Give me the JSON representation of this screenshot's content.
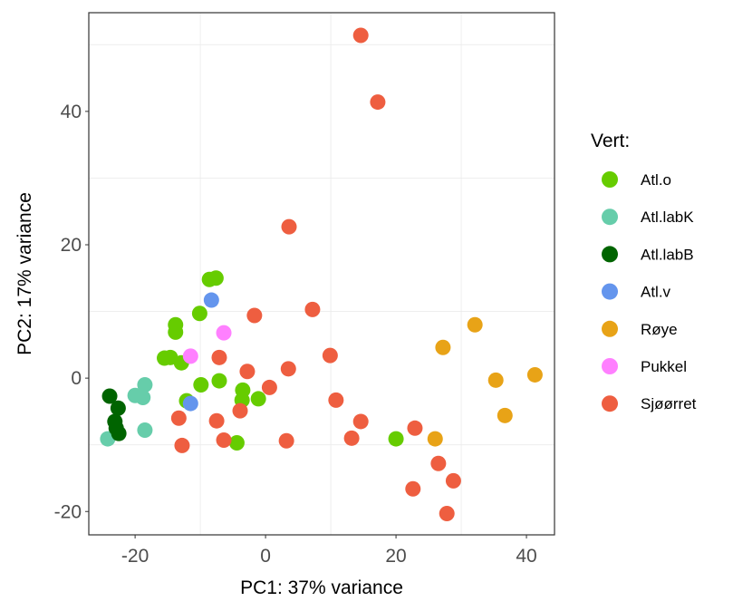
{
  "chart_data": {
    "type": "scatter",
    "title": "",
    "xlabel": "PC1: 37% variance",
    "ylabel": "PC2: 17% variance",
    "xlim": [
      -27.1,
      44.3
    ],
    "ylim": [
      -23.5,
      54.8
    ],
    "xticks": [
      -20,
      0,
      20,
      40
    ],
    "yticks": [
      -20,
      0,
      20,
      40
    ],
    "grid": true,
    "legend": {
      "title": "Vert:",
      "placement": "right"
    },
    "series": [
      {
        "name": "Atl.o",
        "color": "#66cc00",
        "points": [
          [
            -8.6,
            14.8
          ],
          [
            -7.6,
            15.0
          ],
          [
            -10.1,
            9.7
          ],
          [
            -13.8,
            8.0
          ],
          [
            -13.8,
            6.9
          ],
          [
            -15.5,
            3.0
          ],
          [
            -14.6,
            3.1
          ],
          [
            -12.9,
            2.3
          ],
          [
            -9.9,
            -1.0
          ],
          [
            -7.1,
            -0.4
          ],
          [
            -3.5,
            -1.8
          ],
          [
            -3.6,
            -3.3
          ],
          [
            -1.1,
            -3.1
          ],
          [
            -12.1,
            -3.4
          ],
          [
            -4.4,
            -9.7
          ],
          [
            20.0,
            -9.1
          ]
        ]
      },
      {
        "name": "Atl.labK",
        "color": "#66cdaa",
        "points": [
          [
            -18.5,
            -1.0
          ],
          [
            -20.0,
            -2.6
          ],
          [
            -18.8,
            -2.9
          ],
          [
            -18.5,
            -7.8
          ],
          [
            -24.2,
            -9.1
          ]
        ]
      },
      {
        "name": "Atl.labB",
        "color": "#006400",
        "points": [
          [
            -23.9,
            -2.7
          ],
          [
            -22.6,
            -4.5
          ],
          [
            -23.1,
            -6.5
          ],
          [
            -22.9,
            -7.5
          ],
          [
            -22.5,
            -8.3
          ]
        ]
      },
      {
        "name": "Atl.v",
        "color": "#6495ed",
        "points": [
          [
            -8.3,
            11.7
          ],
          [
            -11.5,
            -3.8
          ]
        ]
      },
      {
        "name": "Røye",
        "color": "#e8a317",
        "points": [
          [
            32.1,
            8.0
          ],
          [
            27.2,
            4.6
          ],
          [
            35.3,
            -0.3
          ],
          [
            41.3,
            0.5
          ],
          [
            36.7,
            -5.6
          ],
          [
            26.0,
            -9.1
          ]
        ]
      },
      {
        "name": "Pukkel",
        "color": "#ff80ff",
        "points": [
          [
            -6.4,
            6.8
          ],
          [
            -11.5,
            3.3
          ]
        ]
      },
      {
        "name": "Sjøørret",
        "color": "#ee5e40",
        "points": [
          [
            14.6,
            51.4
          ],
          [
            17.2,
            41.4
          ],
          [
            3.6,
            22.7
          ],
          [
            -1.7,
            9.4
          ],
          [
            7.2,
            10.3
          ],
          [
            9.9,
            3.4
          ],
          [
            3.5,
            1.4
          ],
          [
            -7.1,
            3.1
          ],
          [
            -2.8,
            1.0
          ],
          [
            0.6,
            -1.4
          ],
          [
            -13.3,
            -6.0
          ],
          [
            -7.5,
            -6.4
          ],
          [
            -3.9,
            -4.9
          ],
          [
            -6.4,
            -9.3
          ],
          [
            -12.8,
            -10.1
          ],
          [
            3.2,
            -9.4
          ],
          [
            10.8,
            -3.3
          ],
          [
            14.6,
            -6.5
          ],
          [
            13.2,
            -9.0
          ],
          [
            22.9,
            -7.5
          ],
          [
            26.5,
            -12.8
          ],
          [
            28.8,
            -15.4
          ],
          [
            22.6,
            -16.6
          ],
          [
            27.8,
            -20.3
          ]
        ]
      }
    ]
  }
}
